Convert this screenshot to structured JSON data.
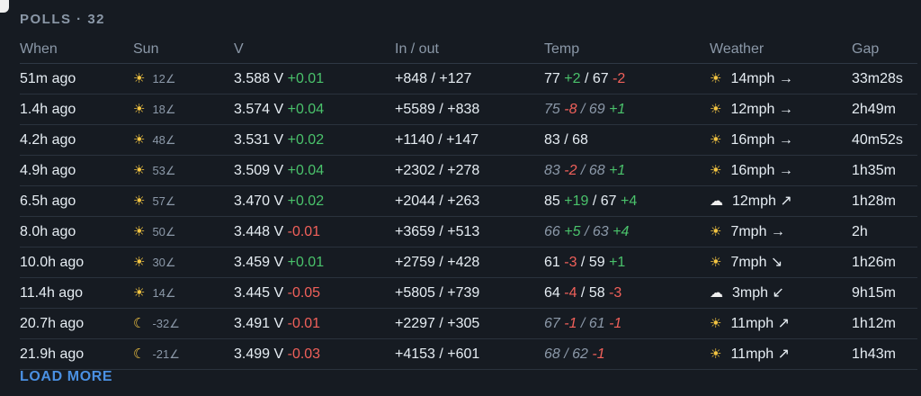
{
  "header": {
    "title": "POLLS · 32"
  },
  "columns": {
    "when": "When",
    "sun": "Sun",
    "v": "V",
    "io": "In / out",
    "temp": "Temp",
    "weather": "Weather",
    "gap": "Gap"
  },
  "rows": [
    {
      "when": "51m ago",
      "sun_icon": "☀",
      "sun_val": "12∠",
      "v": "3.588 V",
      "dv": "+0.01",
      "io": "+848 / +127",
      "t1": "77",
      "d1": "+2",
      "t2": "67",
      "d2": "-2",
      "italic": false,
      "wx_icon": "☀",
      "wind": "14mph →",
      "gap": "33m28s"
    },
    {
      "when": "1.4h ago",
      "sun_icon": "☀",
      "sun_val": "18∠",
      "v": "3.574 V",
      "dv": "+0.04",
      "io": "+5589 / +838",
      "t1": "75",
      "d1": "-8",
      "t2": "69",
      "d2": "+1",
      "italic": true,
      "wx_icon": "☀",
      "wind": "12mph →",
      "gap": "2h49m"
    },
    {
      "when": "4.2h ago",
      "sun_icon": "☀",
      "sun_val": "48∠",
      "v": "3.531 V",
      "dv": "+0.02",
      "io": "+1140 / +147",
      "t1": "83",
      "d1": "",
      "t2": "68",
      "d2": "",
      "italic": false,
      "wx_icon": "☀",
      "wind": "16mph →",
      "gap": "40m52s"
    },
    {
      "when": "4.9h ago",
      "sun_icon": "☀",
      "sun_val": "53∠",
      "v": "3.509 V",
      "dv": "+0.04",
      "io": "+2302 / +278",
      "t1": "83",
      "d1": "-2",
      "t2": "68",
      "d2": "+1",
      "italic": true,
      "wx_icon": "☀",
      "wind": "16mph →",
      "gap": "1h35m"
    },
    {
      "when": "6.5h ago",
      "sun_icon": "☀",
      "sun_val": "57∠",
      "v": "3.470 V",
      "dv": "+0.02",
      "io": "+2044 / +263",
      "t1": "85",
      "d1": "+19",
      "t2": "67",
      "d2": "+4",
      "italic": false,
      "wx_icon": "☁",
      "wind": "12mph ↗",
      "gap": "1h28m"
    },
    {
      "when": "8.0h ago",
      "sun_icon": "☀",
      "sun_val": "50∠",
      "v": "3.448 V",
      "dv": "-0.01",
      "io": "+3659 / +513",
      "t1": "66",
      "d1": "+5",
      "t2": "63",
      "d2": "+4",
      "italic": true,
      "wx_icon": "☀",
      "wind": "7mph →",
      "gap": "2h"
    },
    {
      "when": "10.0h ago",
      "sun_icon": "☀",
      "sun_val": "30∠",
      "v": "3.459 V",
      "dv": "+0.01",
      "io": "+2759 / +428",
      "t1": "61",
      "d1": "-3",
      "t2": "59",
      "d2": "+1",
      "italic": false,
      "wx_icon": "☀",
      "wind": "7mph ↘",
      "gap": "1h26m"
    },
    {
      "when": "11.4h ago",
      "sun_icon": "☀",
      "sun_val": "14∠",
      "v": "3.445 V",
      "dv": "-0.05",
      "io": "+5805 / +739",
      "t1": "64",
      "d1": "-4",
      "t2": "58",
      "d2": "-3",
      "italic": false,
      "wx_icon": "☁",
      "wind": "3mph ↙",
      "gap": "9h15m"
    },
    {
      "when": "20.7h ago",
      "sun_icon": "☾",
      "sun_val": "-32∠",
      "v": "3.491 V",
      "dv": "-0.01",
      "io": "+2297 / +305",
      "t1": "67",
      "d1": "-1",
      "t2": "61",
      "d2": "-1",
      "italic": true,
      "wx_icon": "☀",
      "wind": "11mph ↗",
      "gap": "1h12m"
    },
    {
      "when": "21.9h ago",
      "sun_icon": "☾",
      "sun_val": "-21∠",
      "v": "3.499 V",
      "dv": "-0.03",
      "io": "+4153 / +601",
      "t1": "68",
      "d1": "",
      "t2": "62",
      "d2": "-1",
      "italic": true,
      "wx_icon": "☀",
      "wind": "11mph ↗",
      "gap": "1h43m"
    }
  ],
  "footer": {
    "load_more": "LOAD MORE"
  },
  "colors": {
    "positive": "#4ac26b",
    "negative": "#f0605a",
    "accent": "#4a90e2"
  }
}
